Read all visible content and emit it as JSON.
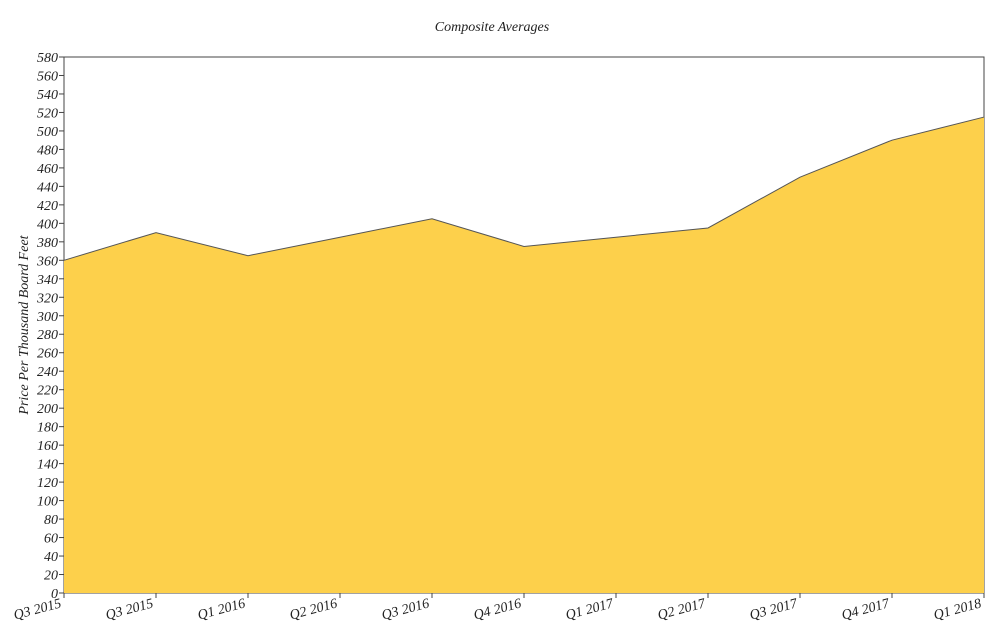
{
  "chart_data": {
    "type": "area",
    "title": "Composite Averages",
    "xlabel": "",
    "ylabel": "Price Per Thousand Board Feet",
    "categories": [
      "Q3 2015",
      "Q3 2015",
      "Q1 2016",
      "Q2 2016",
      "Q3 2016",
      "Q4 2016",
      "Q1 2017",
      "Q2 2017",
      "Q3 2017",
      "Q4 2017",
      "Q1 2018"
    ],
    "series": [
      {
        "values": [
          360,
          390,
          365,
          385,
          405,
          375,
          385,
          395,
          450,
          490,
          515
        ]
      }
    ],
    "ylim": [
      0,
      580
    ],
    "ytick_step": 20,
    "grid": false,
    "legend": "none",
    "fill_color": "#FDD04B",
    "line_color": "#555555"
  }
}
